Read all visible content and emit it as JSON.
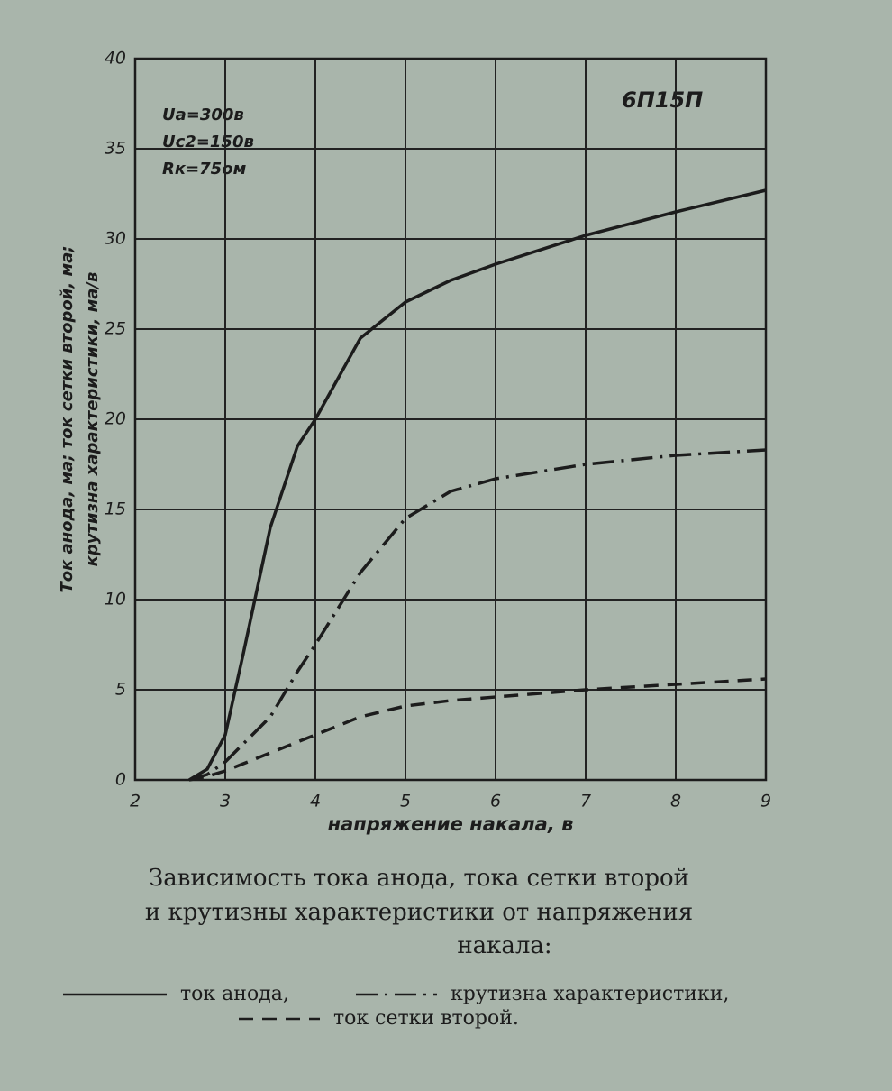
{
  "chart_data": {
    "type": "line",
    "title": "6П15П",
    "annotations": [
      "Uа=300в",
      "Uс2=150в",
      "Rк=75ом"
    ],
    "ylabel": [
      "Ток анода, ма; ток сетки второй, ма;",
      "крутизна характеристики, ма/в"
    ],
    "xlabel": "напряжение накала, в",
    "caption": [
      "Зависимость тока анода, тока сетки второй",
      "и крутизны характеристики от напряжения",
      "накала:"
    ],
    "x": [
      2.6,
      2.8,
      3,
      3.2,
      3.5,
      3.8,
      4,
      4.5,
      5,
      5.5,
      6,
      7,
      8,
      9
    ],
    "series": [
      {
        "name": "ток анода,",
        "color": "#1c1c1c",
        "style": "solid",
        "values": [
          0,
          0.6,
          2.5,
          7,
          14,
          18.5,
          20,
          24.5,
          26.5,
          27.7,
          28.6,
          30.2,
          31.5,
          32.7
        ]
      },
      {
        "name": "крутизна характеристики,",
        "color": "#1c1c1c",
        "style": "dashdot",
        "values": [
          0,
          0.3,
          1,
          2,
          3.5,
          6,
          7.5,
          11.5,
          14.5,
          16,
          16.7,
          17.5,
          18,
          18.3
        ]
      },
      {
        "name": "ток сетки второй.",
        "color": "#1c1c1c",
        "style": "dashed",
        "values": [
          0,
          0.2,
          0.5,
          0.9,
          1.5,
          2.1,
          2.5,
          3.5,
          4.1,
          4.4,
          4.6,
          5,
          5.3,
          5.6
        ]
      }
    ],
    "xlim": [
      2,
      9
    ],
    "xticks": [
      2,
      3,
      4,
      5,
      6,
      7,
      8,
      9
    ],
    "ylim": [
      0,
      40
    ],
    "yticks": [
      0,
      5,
      10,
      15,
      20,
      25,
      30,
      35,
      40
    ],
    "grid": true
  }
}
